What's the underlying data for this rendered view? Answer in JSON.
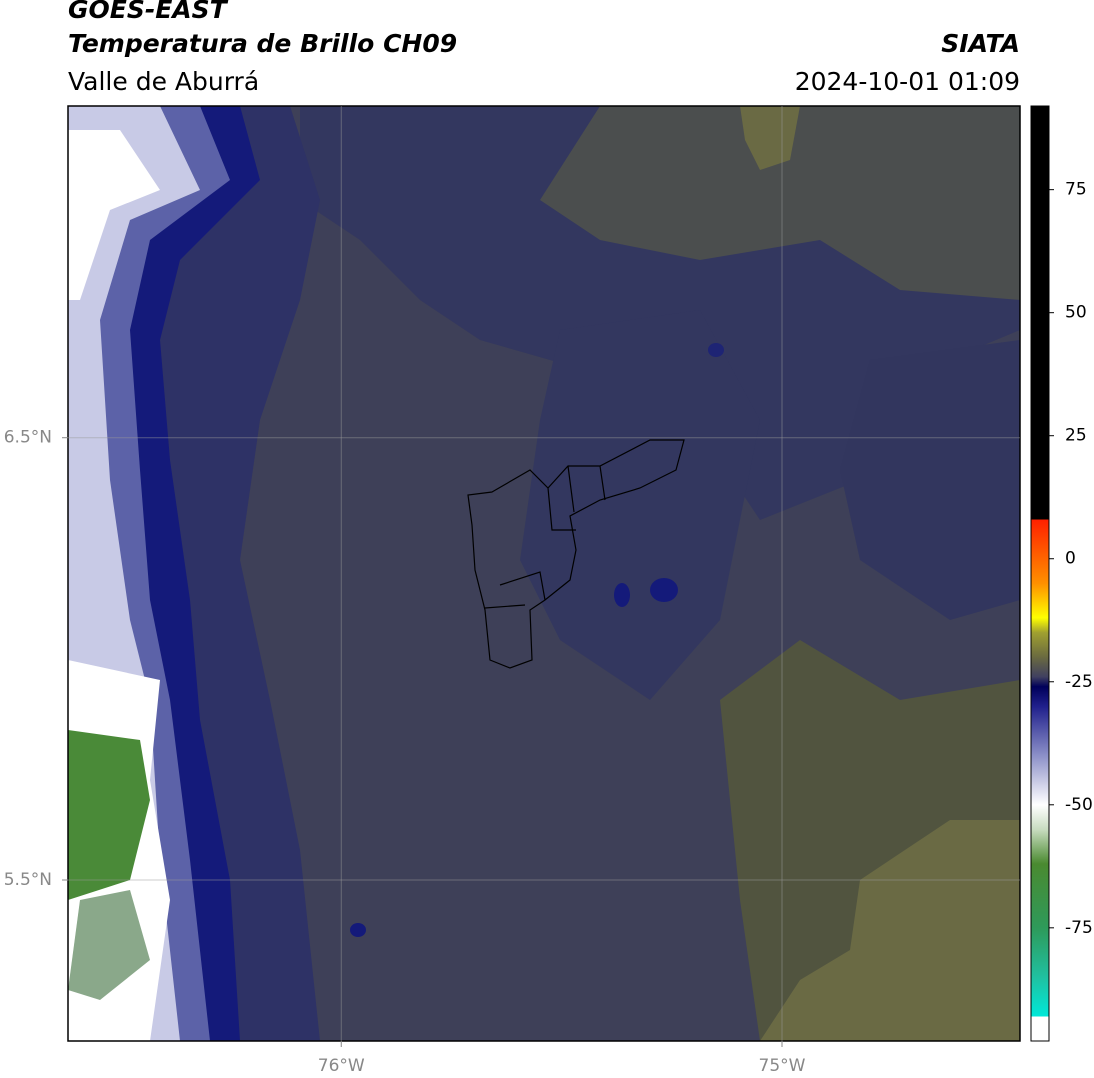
{
  "chart_data": {
    "type": "map",
    "title": "GOES-EAST",
    "subtitle": "Temperatura de Brillo CH09",
    "source": "SIATA",
    "region": "Valle de Aburrá",
    "timestamp": "2024-10-01 01:09",
    "xlim": [
      -76.62,
      -74.46
    ],
    "ylim": [
      5.136,
      7.25
    ],
    "xticks": [
      {
        "value": -76,
        "label": "76°W"
      },
      {
        "value": -75,
        "label": "75°W"
      }
    ],
    "yticks": [
      {
        "value": 5.5,
        "label": "5.5°N"
      },
      {
        "value": 6.5,
        "label": "6.5°N"
      }
    ],
    "grid": true,
    "colorbar": {
      "lim": [
        -98,
        92
      ],
      "ticks": [
        -75,
        -50,
        -25,
        0,
        25,
        50,
        75
      ],
      "stops": [
        {
          "value": -98,
          "color": "#ffffff"
        },
        {
          "value": -93,
          "color": "#ffffff"
        },
        {
          "value": -93,
          "color": "#00e8d8"
        },
        {
          "value": -85,
          "color": "#20c0a0"
        },
        {
          "value": -75,
          "color": "#2e9a5a"
        },
        {
          "value": -62,
          "color": "#4a8a30"
        },
        {
          "value": -55,
          "color": "#c8dcc0"
        },
        {
          "value": -50,
          "color": "#ffffff"
        },
        {
          "value": -40,
          "color": "#8c90c8"
        },
        {
          "value": -30,
          "color": "#20208c"
        },
        {
          "value": -26,
          "color": "#00005a"
        },
        {
          "value": -24,
          "color": "#404060"
        },
        {
          "value": -20,
          "color": "#6a6a40"
        },
        {
          "value": -15,
          "color": "#a0a030"
        },
        {
          "value": -12,
          "color": "#ffff00"
        },
        {
          "value": -5,
          "color": "#ff9000"
        },
        {
          "value": 8,
          "color": "#ff2000"
        },
        {
          "value": 8,
          "color": "#000000"
        },
        {
          "value": 92,
          "color": "#000000"
        }
      ]
    }
  }
}
